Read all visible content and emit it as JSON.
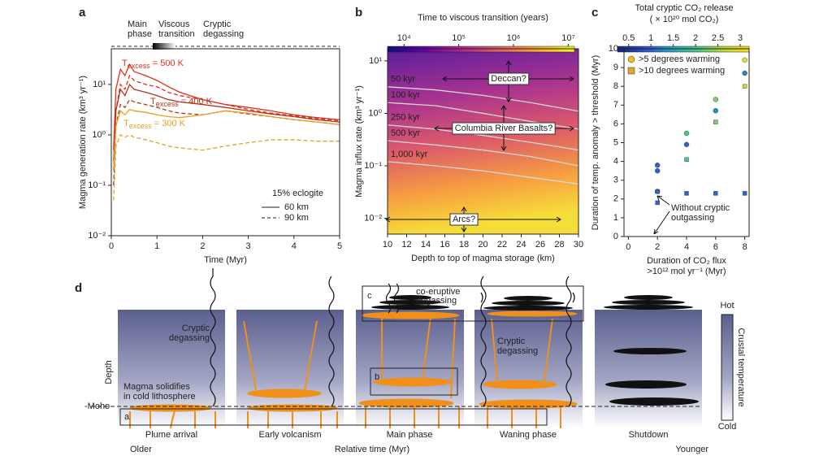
{
  "chart_data": [
    {
      "type": "line",
      "label": "a",
      "ylog": true,
      "xlabel": "Time (Myr)",
      "ylabel": "Magma generation rate (km³ yr⁻¹)",
      "phases": [
        [
          "Main",
          "phase"
        ],
        [
          "Viscous",
          "transition"
        ],
        [
          "Cryptic",
          "degassing"
        ]
      ],
      "xlim": [
        0,
        5
      ],
      "xticks": [
        0,
        1,
        2,
        3,
        4,
        5
      ],
      "ylim": [
        0.01,
        51
      ],
      "yticks": [
        {
          "value": 0.01,
          "label": "10⁻²"
        },
        {
          "value": 0.1,
          "label": "10⁻¹"
        },
        {
          "value": 1,
          "label": "10⁰"
        },
        {
          "value": 10,
          "label": "10¹"
        }
      ],
      "x": [
        0.05,
        0.1,
        0.2,
        0.3,
        0.4,
        0.5,
        0.75,
        1,
        1.25,
        1.5,
        2,
        2.5,
        3,
        3.5,
        4,
        4.5,
        5
      ],
      "series": [
        {
          "color": "#e0301c",
          "dash": false,
          "values": [
            0.5,
            8,
            20,
            15,
            25,
            18,
            15,
            12,
            9,
            7,
            5,
            4,
            3.5,
            3,
            2.5,
            2.2,
            2
          ]
        },
        {
          "color": "#e0301c",
          "dash": true,
          "values": [
            0.2,
            3,
            10,
            8,
            15,
            12,
            10,
            9,
            7,
            6,
            5,
            4,
            3.2,
            2.7,
            2.4,
            2.1,
            1.9
          ]
        },
        {
          "color": "#b5341a",
          "dash": false,
          "values": [
            0.3,
            3,
            8,
            6,
            10,
            8,
            7,
            6,
            5,
            4.5,
            4,
            3.5,
            3,
            2.6,
            2.3,
            2,
            1.8
          ]
        },
        {
          "color": "#b5341a",
          "dash": true,
          "values": [
            0.1,
            1.5,
            4,
            3.5,
            5,
            4.5,
            4,
            3.5,
            3,
            2.7,
            2.5,
            3,
            2.6,
            2.3,
            2,
            1.8,
            1.6
          ]
        },
        {
          "color": "#e8a020",
          "dash": false,
          "values": [
            0.2,
            1.5,
            3,
            2.5,
            3.2,
            3,
            2.8,
            2.5,
            2.3,
            2.2,
            2.5,
            3,
            2.7,
            2.3,
            2,
            1.8,
            1.6
          ]
        },
        {
          "color": "#e8a020",
          "dash": true,
          "values": [
            0.05,
            0.6,
            1,
            0.9,
            1,
            0.9,
            0.8,
            0.7,
            0.6,
            0.55,
            0.5,
            0.6,
            0.7,
            0.8,
            0.8,
            0.75,
            0.75
          ]
        }
      ],
      "annotations": [
        {
          "symbol": "T",
          "subscript": "excess",
          "text": "= 500 K",
          "color": "#e0301c"
        },
        {
          "symbol": "T",
          "subscript": "excess",
          "text": "= 400 K",
          "color": "#b5341a"
        },
        {
          "symbol": "T",
          "subscript": "excess",
          "text": "= 300 K",
          "color": "#e8a020"
        }
      ],
      "legend": {
        "title": "15% eclogite",
        "entries": [
          {
            "label": "60 km",
            "dash": false
          },
          {
            "label": "90 km",
            "dash": true
          }
        ]
      }
    },
    {
      "type": "contour",
      "label": "b",
      "ylog": true,
      "xlabel": "Depth to top of magma storage (km)",
      "ylabel": "Magma influx rate (km³ yr⁻¹)",
      "xlim": [
        10,
        30
      ],
      "xticks": [
        10,
        12,
        14,
        16,
        18,
        20,
        22,
        24,
        26,
        28,
        30
      ],
      "ylim": [
        0.005,
        17
      ],
      "yticks": [
        {
          "value": 0.01,
          "label": "10⁻²"
        },
        {
          "value": 0.1,
          "label": "10⁻¹"
        },
        {
          "value": 1,
          "label": "10⁰"
        },
        {
          "value": 10,
          "label": "10¹"
        }
      ],
      "colorbar": {
        "title": "Time to viscous transition (years)",
        "log": true,
        "lim": [
          5000,
          13000000
        ],
        "ticks": [
          {
            "value": 10000,
            "label": "10⁴"
          },
          {
            "value": 100000,
            "label": "10⁵"
          },
          {
            "value": 1000000,
            "label": "10⁶"
          },
          {
            "value": 10000000,
            "label": "10⁷"
          }
        ],
        "colors": [
          "#0d0887",
          "#6a00a8",
          "#b12a90",
          "#e16462",
          "#fca636",
          "#f0f921"
        ]
      },
      "x": [
        10,
        15,
        20,
        25,
        30
      ],
      "series": [
        {
          "name": "50 kyr",
          "values": [
            3.2,
            2.8,
            2.2,
            1.6,
            1.1
          ]
        },
        {
          "name": "100 kyr",
          "values": [
            1.6,
            1.4,
            1.0,
            0.7,
            0.5
          ]
        },
        {
          "name": "250 kyr",
          "values": [
            0.6,
            0.5,
            0.38,
            0.28,
            0.2
          ]
        },
        {
          "name": "500 kyr",
          "values": [
            0.3,
            0.25,
            0.2,
            0.15,
            0.1
          ]
        },
        {
          "name": "1,000 kyr",
          "values": [
            0.12,
            0.1,
            0.08,
            0.06,
            0.045
          ]
        }
      ],
      "annotations": [
        "Deccan?",
        "Columbia River Basalts?",
        "Arcs?"
      ]
    },
    {
      "type": "scatter",
      "label": "c",
      "title": [
        "Total cryptic CO₂ release",
        "( × 10²⁰ mol CO₂)"
      ],
      "xlabel": [
        "Duration of CO₂ flux",
        ">10¹² mol yr⁻¹ (Myr)"
      ],
      "ylabel": "Duration of temp. anomaly > threshold (Myr)",
      "xlim": [
        -0.3,
        8.3
      ],
      "xticks": [
        0,
        2,
        4,
        6,
        8
      ],
      "ylim": [
        0,
        10
      ],
      "yticks": [
        0,
        1,
        2,
        3,
        4,
        5,
        6,
        7,
        8,
        9,
        10
      ],
      "colorbar": {
        "log": false,
        "lim": [
          0.25,
          3.2
        ],
        "ticks": [
          0.5,
          1,
          1.5,
          2,
          2.5,
          3
        ],
        "colors": [
          "#1a1f7a",
          "#2c4fc8",
          "#2a9fc0",
          "#4cc38a",
          "#b8d838",
          "#f7e020"
        ]
      },
      "series": [
        {
          "name": ">5 degrees warming",
          "marker": "circle",
          "color": "#e8c020",
          "x": [
            2,
            2,
            2,
            4,
            4,
            6,
            6,
            8,
            8
          ],
          "values": [
            3.8,
            3.5,
            2.4,
            5.5,
            4.9,
            7.3,
            6.7,
            9.4,
            8.7
          ],
          "c": [
            1,
            1,
            1,
            2,
            1,
            2.3,
            1.3,
            3,
            1.2
          ]
        },
        {
          "name": ">10 degrees warming",
          "marker": "square",
          "color": "#e0a830",
          "x": [
            2,
            2,
            4,
            4,
            6,
            6,
            8,
            8
          ],
          "values": [
            2.4,
            1.8,
            4.1,
            2.3,
            6.1,
            2.3,
            8.0,
            2.3
          ],
          "c": [
            1,
            1,
            2,
            1,
            2.3,
            1,
            2.8,
            1
          ]
        }
      ],
      "annotation": [
        "Without cryptic",
        "outgassing"
      ]
    }
  ],
  "diagram": {
    "label": "d",
    "box_labels": [
      "a",
      "b",
      "c"
    ],
    "stages": [
      "Plume arrival",
      "Early volcanism",
      "Main phase",
      "Waning phase",
      "Shutdown"
    ],
    "time_axis": {
      "start": "Older",
      "title": "Relative time (Myr)",
      "end": "Younger"
    },
    "depth": "Depth",
    "moho": "-Moho",
    "notes": {
      "cryptic_1": [
        "Cryptic",
        "degassing"
      ],
      "cryptic_2": [
        "Cryptic",
        "degassing"
      ],
      "solidifies": [
        "Magma solidifies",
        "in cold lithosphere"
      ],
      "co_eruptive": [
        "co-eruptive",
        "degassing"
      ]
    },
    "colorbar": {
      "top": "Hot",
      "title": "Crustal temperature",
      "bottom": "Cold"
    }
  }
}
